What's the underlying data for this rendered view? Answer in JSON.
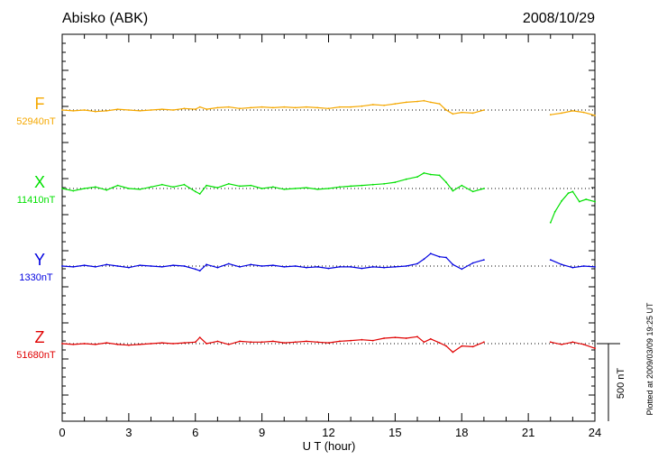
{
  "chart": {
    "title_left": "Abisko (ABK)",
    "title_right": "2008/10/29",
    "xlabel": "U T (hour)",
    "scale_bar": "500 nT",
    "footnote": "Plotted at 2009/03/09 19:25 UT"
  },
  "chart_data": {
    "type": "line",
    "title": "Abisko (ABK)",
    "date": "2008/10/29",
    "xlabel": "U T (hour)",
    "xlim": [
      0,
      24
    ],
    "xticks": [
      0,
      3,
      6,
      9,
      12,
      15,
      18,
      21,
      24
    ],
    "grid": "dotted baseline per component",
    "scale_bar_nT": 500,
    "data_gap_hours": [
      19.0,
      22.0
    ],
    "series": [
      {
        "name": "F",
        "baseline": "52940nT",
        "baseline_nT": 52940,
        "color": "#F5A800",
        "x": [
          0,
          0.5,
          1,
          1.5,
          2,
          2.5,
          3,
          3.5,
          4,
          4.5,
          5,
          5.5,
          6,
          6.2,
          6.5,
          7,
          7.5,
          8,
          8.5,
          9,
          9.5,
          10,
          10.5,
          11,
          11.5,
          12,
          12.5,
          13,
          13.5,
          14,
          14.5,
          15,
          15.5,
          16,
          16.3,
          16.6,
          17,
          17.3,
          17.6,
          18,
          18.5,
          19,
          22,
          22.5,
          23,
          23.5,
          24
        ],
        "y": [
          0,
          -5,
          0,
          -10,
          -5,
          5,
          0,
          -5,
          0,
          5,
          0,
          10,
          5,
          20,
          5,
          15,
          20,
          10,
          15,
          20,
          15,
          20,
          15,
          20,
          15,
          10,
          20,
          20,
          25,
          35,
          30,
          40,
          50,
          55,
          60,
          50,
          40,
          0,
          -25,
          -15,
          -20,
          0,
          -30,
          -20,
          -5,
          -15,
          -35
        ]
      },
      {
        "name": "X",
        "baseline": "11410nT",
        "baseline_nT": 11410,
        "color": "#00E000",
        "x": [
          0,
          0.5,
          1,
          1.5,
          2,
          2.5,
          3,
          3.5,
          4,
          4.5,
          5,
          5.5,
          6,
          6.2,
          6.5,
          7,
          7.5,
          8,
          8.5,
          9,
          9.5,
          10,
          10.5,
          11,
          11.5,
          12,
          12.5,
          13,
          13.5,
          14,
          14.5,
          15,
          15.5,
          16,
          16.3,
          16.6,
          17,
          17.3,
          17.6,
          18,
          18.5,
          19,
          22,
          22.2,
          22.5,
          22.8,
          23,
          23.3,
          23.6,
          24
        ],
        "y": [
          0,
          -15,
          0,
          10,
          -10,
          20,
          0,
          -5,
          10,
          25,
          10,
          25,
          -20,
          -35,
          20,
          5,
          30,
          15,
          20,
          0,
          10,
          -5,
          0,
          5,
          -5,
          0,
          10,
          15,
          20,
          25,
          30,
          40,
          60,
          75,
          100,
          90,
          85,
          40,
          -15,
          20,
          -20,
          0,
          -220,
          -150,
          -80,
          -30,
          -20,
          -85,
          -70,
          -85
        ]
      },
      {
        "name": "Y",
        "baseline": "1330nT",
        "baseline_nT": 1330,
        "color": "#0000E0",
        "x": [
          0,
          0.5,
          1,
          1.5,
          2,
          2.5,
          3,
          3.5,
          4,
          4.5,
          5,
          5.5,
          6,
          6.2,
          6.5,
          7,
          7.5,
          8,
          8.5,
          9,
          9.5,
          10,
          10.5,
          11,
          11.5,
          12,
          12.5,
          13,
          13.5,
          14,
          14.5,
          15,
          15.5,
          16,
          16.3,
          16.6,
          17,
          17.3,
          17.6,
          18,
          18.5,
          19,
          22,
          22.5,
          23,
          23.5,
          24
        ],
        "y": [
          0,
          -5,
          5,
          -5,
          10,
          0,
          -10,
          5,
          0,
          -5,
          5,
          0,
          -20,
          -30,
          10,
          -10,
          15,
          -5,
          10,
          0,
          5,
          -5,
          0,
          -10,
          -5,
          -15,
          -5,
          -5,
          -15,
          -5,
          -10,
          -5,
          0,
          15,
          45,
          80,
          60,
          55,
          10,
          -20,
          20,
          40,
          40,
          10,
          -10,
          0,
          -5
        ]
      },
      {
        "name": "Z",
        "baseline": "51680nT",
        "baseline_nT": 51680,
        "color": "#E00000",
        "x": [
          0,
          0.5,
          1,
          1.5,
          2,
          2.5,
          3,
          3.5,
          4,
          4.5,
          5,
          5.5,
          6,
          6.2,
          6.5,
          7,
          7.5,
          8,
          8.5,
          9,
          9.5,
          10,
          10.5,
          11,
          11.5,
          12,
          12.5,
          13,
          13.5,
          14,
          14.5,
          15,
          15.5,
          16,
          16.3,
          16.6,
          17,
          17.3,
          17.6,
          18,
          18.5,
          19,
          22,
          22.5,
          23,
          23.5,
          24
        ],
        "y": [
          0,
          -5,
          0,
          -5,
          5,
          -5,
          -10,
          -5,
          0,
          5,
          0,
          5,
          10,
          40,
          0,
          15,
          -5,
          15,
          10,
          10,
          15,
          5,
          10,
          15,
          10,
          5,
          15,
          20,
          25,
          20,
          35,
          40,
          35,
          45,
          10,
          30,
          5,
          -15,
          -55,
          -15,
          -20,
          10,
          10,
          -5,
          10,
          -5,
          -30
        ]
      }
    ]
  }
}
